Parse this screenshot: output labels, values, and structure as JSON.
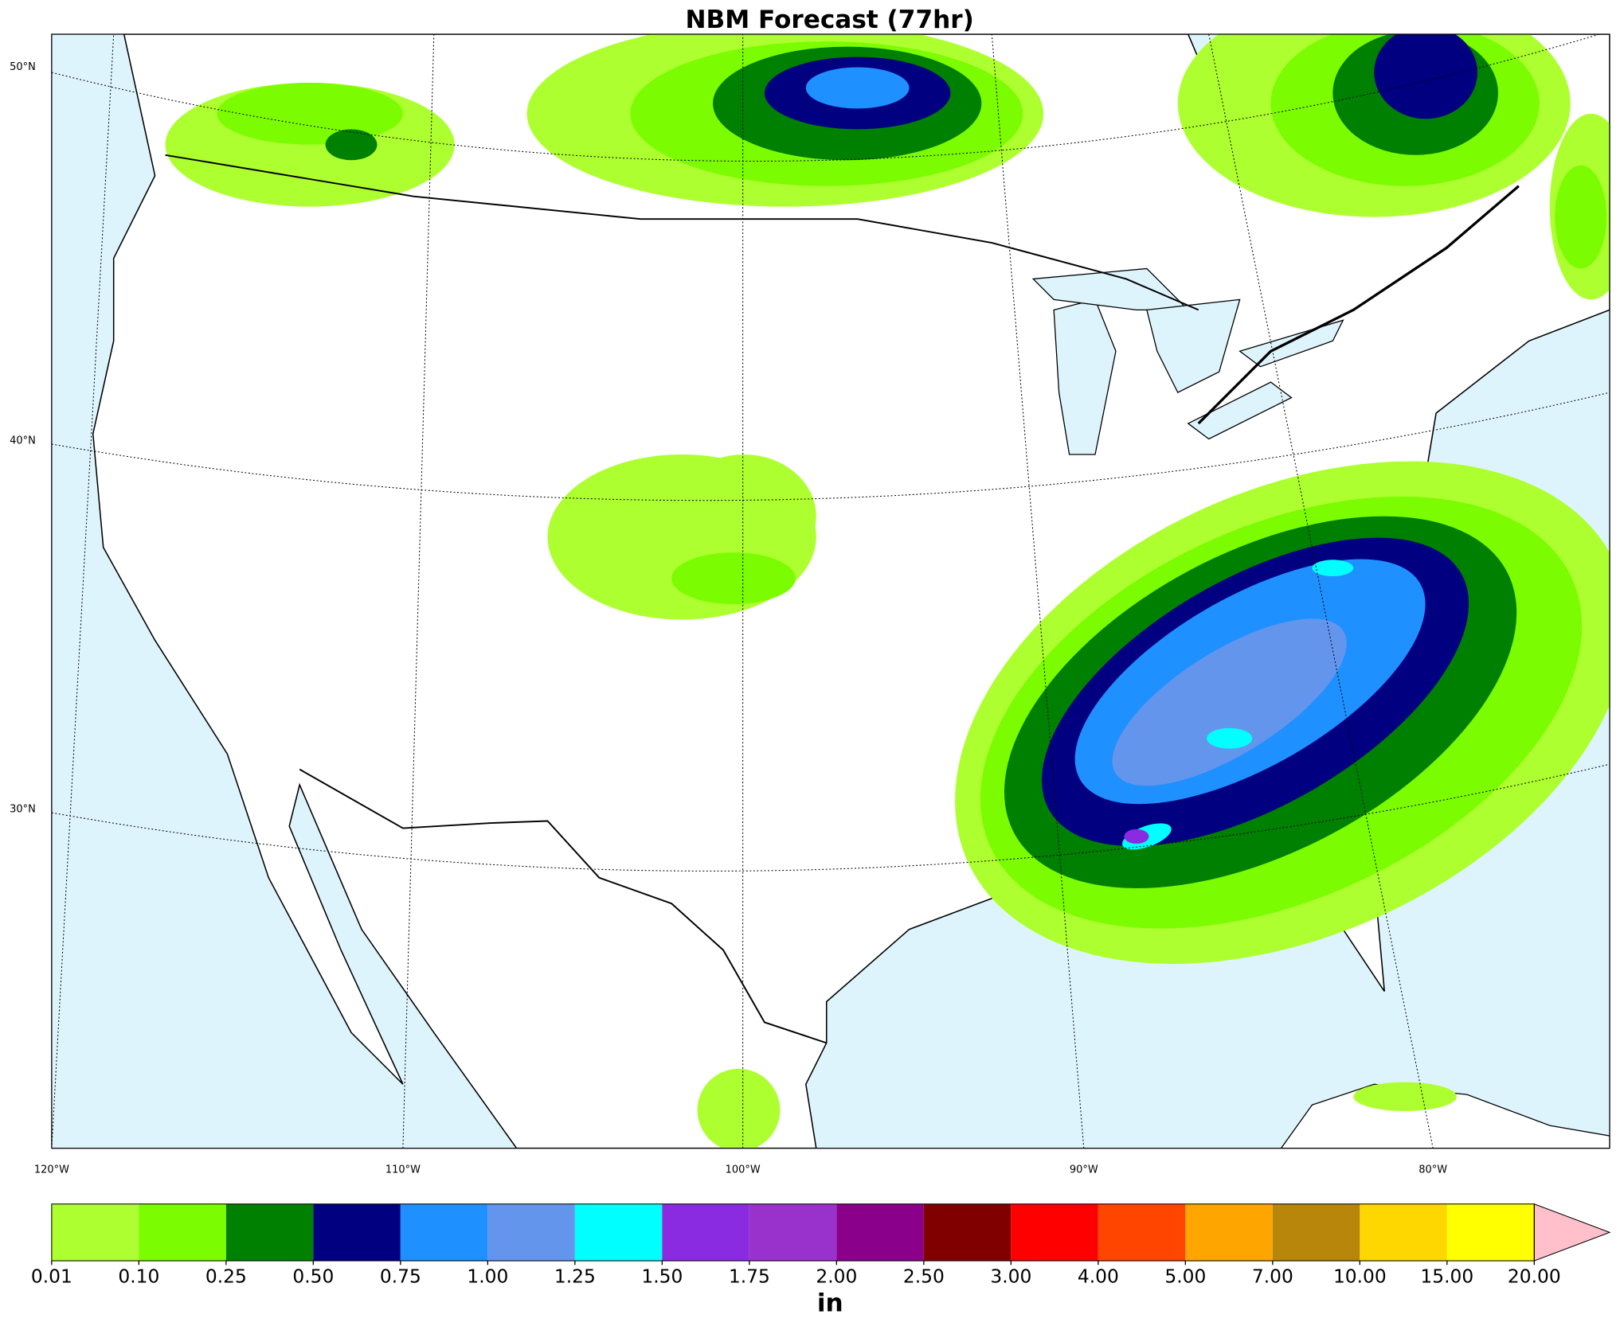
{
  "title": "NBM Forecast (77hr)",
  "map": {
    "lat_labels": [
      "50°N",
      "40°N",
      "30°N"
    ],
    "lon_labels": [
      "120°W",
      "110°W",
      "100°W",
      "90°W",
      "80°W"
    ]
  },
  "colorbar": {
    "label": "in",
    "ticks": [
      {
        "value": 0.01,
        "label": "0.01"
      },
      {
        "value": 0.1,
        "label": "0.10"
      },
      {
        "value": 0.25,
        "label": "0.25"
      },
      {
        "value": 0.5,
        "label": "0.50"
      },
      {
        "value": 0.75,
        "label": "0.75"
      },
      {
        "value": 1,
        "label": "1.00"
      },
      {
        "value": 1.25,
        "label": "1.25"
      },
      {
        "value": 1.5,
        "label": "1.50"
      },
      {
        "value": 1.75,
        "label": "1.75"
      },
      {
        "value": 2,
        "label": "2.00"
      },
      {
        "value": 2.5,
        "label": "2.50"
      },
      {
        "value": 3,
        "label": "3.00"
      },
      {
        "value": 4,
        "label": "4.00"
      },
      {
        "value": 5,
        "label": "5.00"
      },
      {
        "value": 7,
        "label": "7.00"
      },
      {
        "value": 10,
        "label": "10.00"
      },
      {
        "value": 15,
        "label": "15.00"
      },
      {
        "value": 20,
        "label": "20.00"
      }
    ],
    "colors": [
      "#adff2f",
      "#7cfc00",
      "#008000",
      "#000080",
      "#1e90ff",
      "#6495ed",
      "#00ffff",
      "#8a2be2",
      "#9932cc",
      "#8b008b",
      "#800000",
      "#ff0000",
      "#ff4500",
      "#ffa500",
      "#b8860b",
      "#ffd700",
      "#ffff00"
    ],
    "extend_color": "#ffc0cb"
  }
}
